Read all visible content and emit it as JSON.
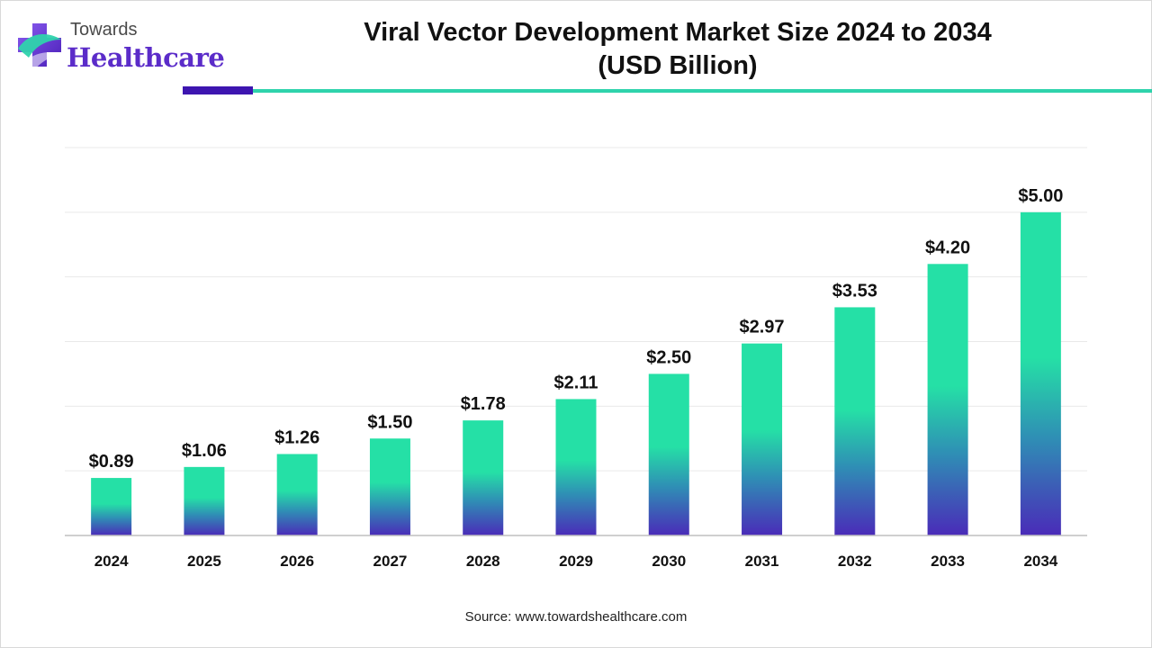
{
  "header": {
    "logo_top": "Towards",
    "logo_bottom": "Healthcare",
    "title_line1": "Viral Vector Development Market Size 2024 to 2034",
    "title_line2": "(USD Billion)"
  },
  "chart_data": {
    "type": "bar",
    "title": "Viral Vector Development Market Size 2024 to 2034 (USD Billion)",
    "xlabel": "",
    "ylabel": "",
    "categories": [
      "2024",
      "2025",
      "2026",
      "2027",
      "2028",
      "2029",
      "2030",
      "2031",
      "2032",
      "2033",
      "2034"
    ],
    "values": [
      0.89,
      1.06,
      1.26,
      1.5,
      1.78,
      2.11,
      2.5,
      2.97,
      3.53,
      4.2,
      5.0
    ],
    "value_labels": [
      "$0.89",
      "$1.06",
      "$1.26",
      "$1.50",
      "$1.78",
      "$2.11",
      "$2.50",
      "$2.97",
      "$3.53",
      "$4.20",
      "$5.00"
    ],
    "ylim": [
      0,
      6
    ],
    "grid": true,
    "legend": "none",
    "colors": {
      "bar_top": "#25e0a6",
      "bar_mid": "#2f8eb5",
      "bar_bottom": "#4a2bb8",
      "gridline": "#e9e9e9",
      "axis": "#bfbfbf"
    }
  },
  "footer": {
    "source": "Source: www.towardshealthcare.com"
  },
  "colors": {
    "brand_purple": "#5b2cc9",
    "rule_purple": "#3d15b0",
    "rule_teal": "#2fd3ac"
  }
}
